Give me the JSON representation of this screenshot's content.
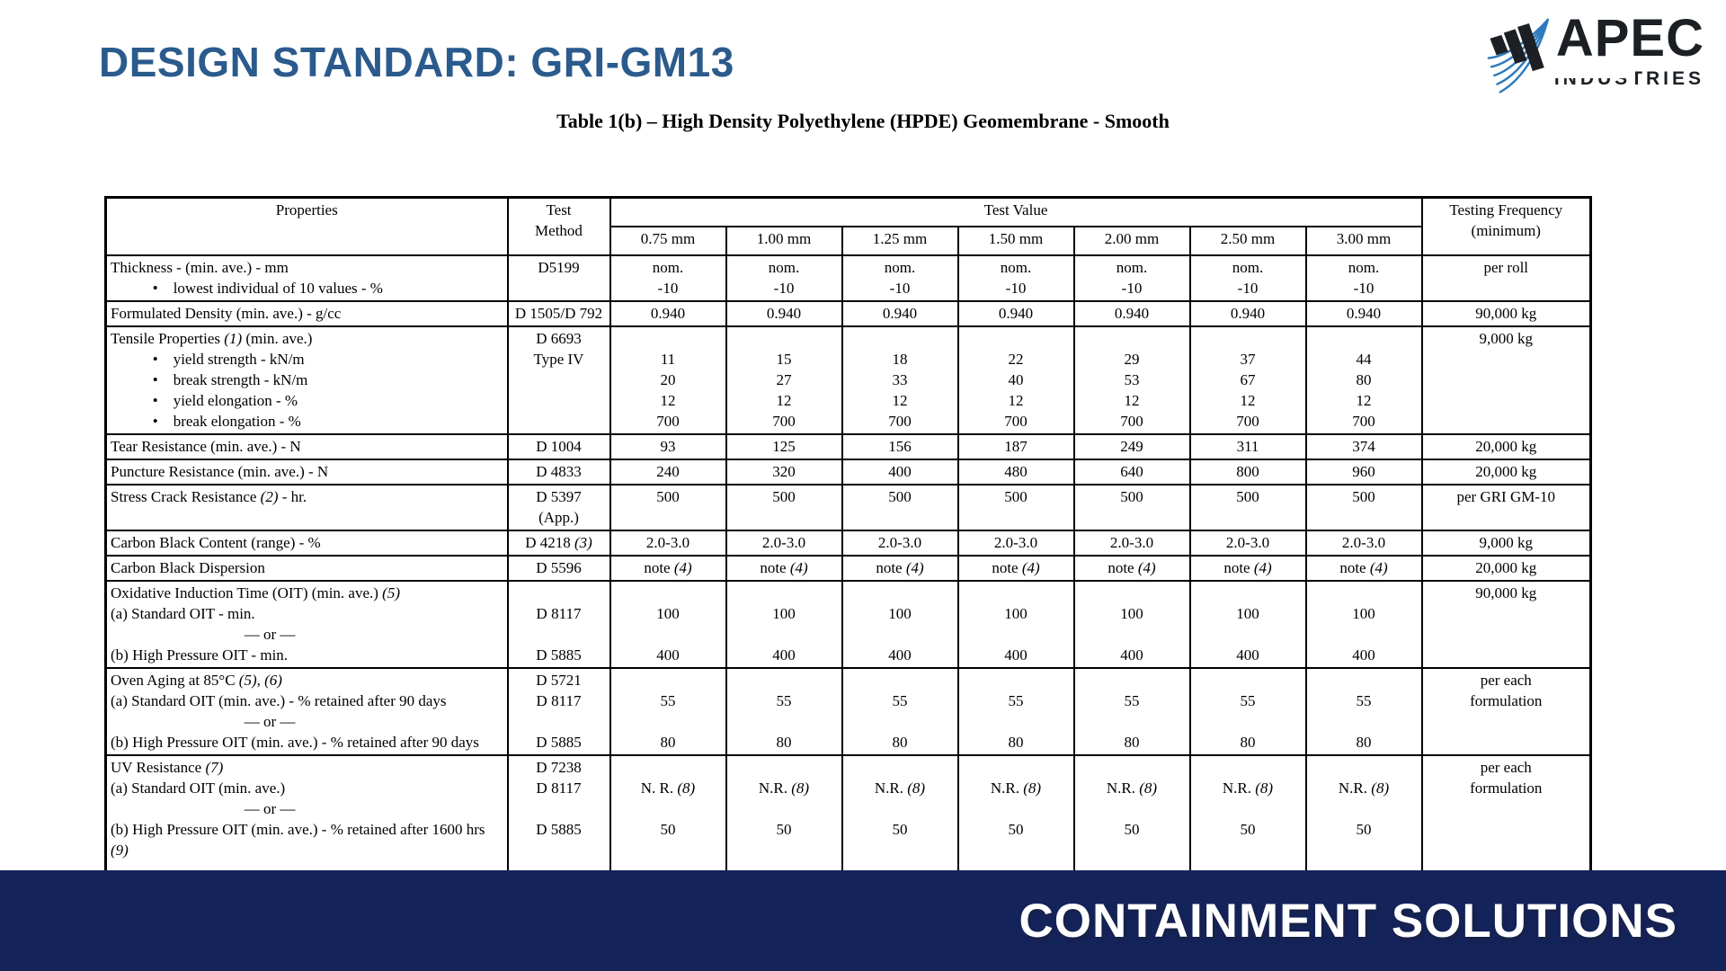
{
  "page": {
    "title": "DESIGN STANDARD: GRI-GM13"
  },
  "logo": {
    "brand": "APEC",
    "brand_sub": "INDUSTRIES"
  },
  "footer": {
    "text": "CONTAINMENT SOLUTIONS"
  },
  "colors": {
    "title_blue": "#2b5b8d",
    "footer_navy": "#15235b",
    "logo_dark": "#1c2024",
    "logo_blue": "#2e7abf",
    "table_border": "#000000"
  },
  "table": {
    "title": "Table 1(b) – High Density Polyethylene (HPDE) Geomembrane - Smooth",
    "header": {
      "properties": "Properties",
      "test_method": "Test\nMethod",
      "test_value": "Test Value",
      "thickness_columns": [
        "0.75 mm",
        "1.00 mm",
        "1.25 mm",
        "1.50 mm",
        "2.00 mm",
        "2.50 mm",
        "3.00 mm"
      ],
      "testing_frequency": "Testing Frequency\n(minimum)"
    },
    "rows": [
      {
        "property": "Thickness - (min. ave.) - mm\n           •    lowest individual of 10 values - %",
        "method": "D5199",
        "values": [
          "nom.\n-10",
          "nom.\n-10",
          "nom.\n-10",
          "nom.\n-10",
          "nom.\n-10",
          "nom.\n-10",
          "nom.\n-10"
        ],
        "frequency": "per roll",
        "freq_align": "top"
      },
      {
        "property": "Formulated Density (min. ave.) - g/cc",
        "method": "D 1505/D 792",
        "values": [
          "0.940",
          "0.940",
          "0.940",
          "0.940",
          "0.940",
          "0.940",
          "0.940"
        ],
        "frequency": "90,000 kg",
        "freq_align": "top"
      },
      {
        "property": "Tensile Properties *(1)* (min. ave.)\n           •    yield strength - kN/m\n           •    break strength - kN/m\n           •    yield elongation - %\n           •    break elongation - %",
        "method": "D 6693\nType IV",
        "values": [
          "\n11\n20\n12\n700",
          "\n15\n27\n12\n700",
          "\n18\n33\n12\n700",
          "\n22\n40\n12\n700",
          "\n29\n53\n12\n700",
          "\n37\n67\n12\n700",
          "\n44\n80\n12\n700"
        ],
        "frequency": "9,000 kg",
        "freq_align": "top"
      },
      {
        "property": "Tear Resistance (min. ave.) - N",
        "method": "D 1004",
        "values": [
          "93",
          "125",
          "156",
          "187",
          "249",
          "311",
          "374"
        ],
        "frequency": "20,000 kg",
        "freq_align": "top"
      },
      {
        "property": "Puncture Resistance (min. ave.) - N",
        "method": "D 4833",
        "values": [
          "240",
          "320",
          "400",
          "480",
          "640",
          "800",
          "960"
        ],
        "frequency": "20,000 kg",
        "freq_align": "top"
      },
      {
        "property": "Stress Crack Resistance *(2)* - hr.",
        "method": "D 5397\n(App.)",
        "values": [
          "500",
          "500",
          "500",
          "500",
          "500",
          "500",
          "500"
        ],
        "frequency": "per GRI GM-10",
        "freq_align": "top"
      },
      {
        "property": "Carbon Black Content (range) - %",
        "method": "D 4218 *(3)*",
        "values": [
          "2.0-3.0",
          "2.0-3.0",
          "2.0-3.0",
          "2.0-3.0",
          "2.0-3.0",
          "2.0-3.0",
          "2.0-3.0"
        ],
        "frequency": "9,000 kg",
        "freq_align": "top"
      },
      {
        "property": "Carbon Black Dispersion",
        "method": "D 5596",
        "values": [
          "note *(4)*",
          "note *(4)*",
          "note *(4)*",
          "note *(4)*",
          "note *(4)*",
          "note *(4)*",
          "note *(4)*"
        ],
        "frequency": "20,000 kg",
        "freq_align": "top"
      },
      {
        "property": "Oxidative Induction Time (OIT) (min. ave.) *(5)*\n(a) Standard OIT - min.\n                                   — or —\n(b) High Pressure OIT - min.",
        "method": "\nD 8117\n\nD 5885",
        "values": [
          "\n100\n\n400",
          "\n100\n\n400",
          "\n100\n\n400",
          "\n100\n\n400",
          "\n100\n\n400",
          "\n100\n\n400",
          "\n100\n\n400"
        ],
        "frequency": "90,000 kg",
        "freq_align": "top"
      },
      {
        "property": "Oven Aging at 85°C *(5), (6)*\n(a) Standard OIT (min. ave.) - % retained after 90 days\n                                   — or —\n(b) High Pressure OIT (min. ave.) - % retained after 90 days",
        "method": "D 5721\nD 8117\n\nD 5885",
        "values": [
          "\n55\n\n80",
          "\n55\n\n80",
          "\n55\n\n80",
          "\n55\n\n80",
          "\n55\n\n80",
          "\n55\n\n80",
          "\n55\n\n80"
        ],
        "frequency": "per each\nformulation",
        "freq_align": "middle"
      },
      {
        "property": "UV Resistance *(7)*\n(a) Standard OIT (min. ave.)\n                                   — or —\n(b) High Pressure OIT (min. ave.) - % retained after 1600 hrs *(9)*",
        "method": "D 7238\nD 8117\n\nD 5885",
        "values": [
          "\nN. R. *(8)*\n\n50",
          "\nN.R. *(8)*\n\n50",
          "\nN.R. *(8)*\n\n50",
          "\nN.R. *(8)*\n\n50",
          "\nN.R. *(8)*\n\n50",
          "\nN.R. *(8)*\n\n50",
          "\nN.R. *(8)*\n\n50"
        ],
        "frequency": "per each\nformulation",
        "freq_align": "middle"
      }
    ]
  }
}
